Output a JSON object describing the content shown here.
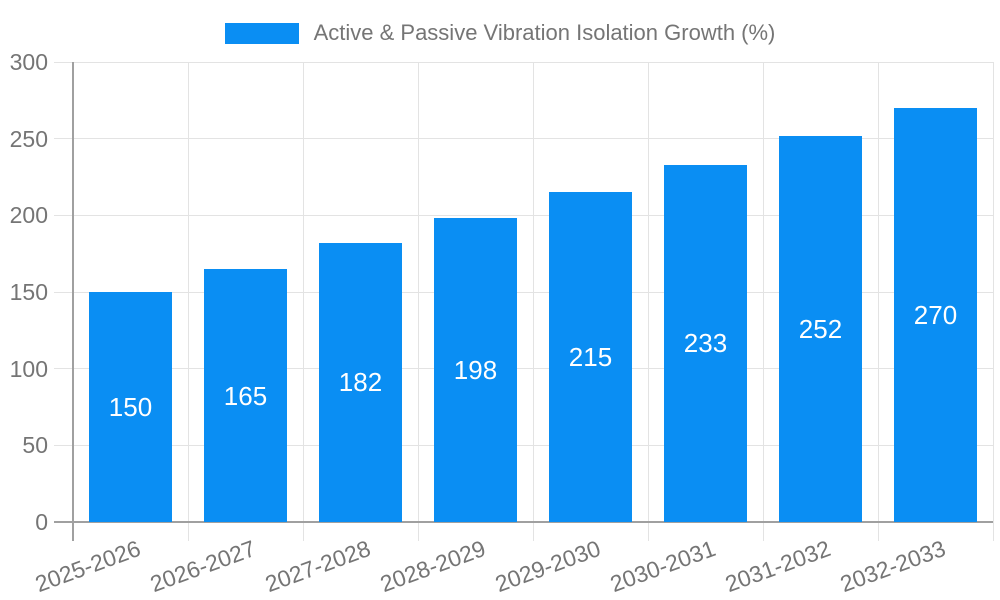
{
  "chart_data": {
    "type": "bar",
    "series_name": "Active & Passive Vibration Isolation Growth (%)",
    "categories": [
      "2025-2026",
      "2026-2027",
      "2027-2028",
      "2028-2029",
      "2029-2030",
      "2030-2031",
      "2031-2032",
      "2032-2033"
    ],
    "values": [
      150,
      165,
      182,
      198,
      215,
      233,
      252,
      270
    ],
    "value_labels_shown": true,
    "ylim": [
      0,
      300
    ],
    "yticks": [
      0,
      50,
      100,
      150,
      200,
      250,
      300
    ],
    "xlabel": "",
    "ylabel": "",
    "grid": true,
    "legend_position": "top",
    "bar_color": "#0a8ef3",
    "value_label_color": "#ffffff",
    "axis_color": "#a0a0a0",
    "grid_color": "#e3e3e3",
    "tick_label_color": "#757575",
    "background_color": "#ffffff"
  }
}
